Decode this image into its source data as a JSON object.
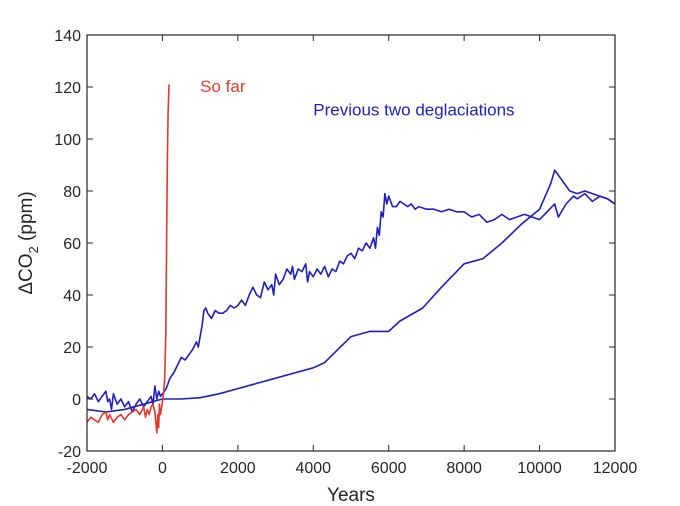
{
  "chart_data": {
    "type": "line",
    "xlabel": "Years",
    "ylabel_main": "ΔCO",
    "ylabel_sub": "2",
    "ylabel_unit": " (ppm)",
    "xlim": [
      -2000,
      12000
    ],
    "ylim": [
      -20,
      140
    ],
    "xticks": [
      -2000,
      0,
      2000,
      4000,
      6000,
      8000,
      10000,
      12000
    ],
    "yticks": [
      -20,
      0,
      20,
      40,
      60,
      80,
      100,
      120,
      140
    ],
    "xtick_labels": [
      "-2000",
      "0",
      "2000",
      "4000",
      "6000",
      "8000",
      "10000",
      "12000"
    ],
    "ytick_labels": [
      "-20",
      "0",
      "20",
      "40",
      "60",
      "80",
      "100",
      "120",
      "140"
    ],
    "grid": false,
    "colors": {
      "so_far": "#e03a2c",
      "previous": "#1f1fbf",
      "axis": "#262626"
    },
    "annotations": [
      {
        "text": "So far",
        "color": "#e03a2c",
        "x": 1000,
        "y": 118
      },
      {
        "text": "Previous two deglaciations",
        "color": "#1f1fbf",
        "x": 4000,
        "y": 109
      }
    ],
    "series": [
      {
        "key": "so_far",
        "color": "#e03a2c",
        "points": [
          [
            -2000,
            -9
          ],
          [
            -1900,
            -7
          ],
          [
            -1800,
            -8
          ],
          [
            -1700,
            -9
          ],
          [
            -1600,
            -6
          ],
          [
            -1500,
            -5
          ],
          [
            -1450,
            -8
          ],
          [
            -1400,
            -6
          ],
          [
            -1300,
            -9
          ],
          [
            -1200,
            -7
          ],
          [
            -1100,
            -6
          ],
          [
            -1000,
            -8
          ],
          [
            -900,
            -6
          ],
          [
            -800,
            -5
          ],
          [
            -700,
            -4
          ],
          [
            -600,
            -6
          ],
          [
            -500,
            -3
          ],
          [
            -450,
            -7
          ],
          [
            -400,
            -4
          ],
          [
            -350,
            -6
          ],
          [
            -300,
            -3
          ],
          [
            -250,
            -2
          ],
          [
            -200,
            -5
          ],
          [
            -150,
            -13
          ],
          [
            -120,
            -6
          ],
          [
            -100,
            -11
          ],
          [
            -80,
            -2
          ],
          [
            -50,
            -6
          ],
          [
            -20,
            -3
          ],
          [
            0,
            -1
          ],
          [
            30,
            2
          ],
          [
            60,
            8
          ],
          [
            90,
            25
          ],
          [
            110,
            60
          ],
          [
            130,
            90
          ],
          [
            150,
            110
          ],
          [
            175,
            121
          ]
        ]
      },
      {
        "key": "previous_a",
        "color": "#1f1fbf",
        "points": [
          [
            -2000,
            1
          ],
          [
            -1900,
            0
          ],
          [
            -1800,
            2
          ],
          [
            -1700,
            -1
          ],
          [
            -1600,
            1
          ],
          [
            -1500,
            3
          ],
          [
            -1450,
            -1
          ],
          [
            -1400,
            0
          ],
          [
            -1350,
            -4
          ],
          [
            -1300,
            2
          ],
          [
            -1200,
            -2
          ],
          [
            -1100,
            0
          ],
          [
            -1000,
            -3
          ],
          [
            -900,
            -1
          ],
          [
            -800,
            -5
          ],
          [
            -700,
            -2
          ],
          [
            -600,
            0
          ],
          [
            -500,
            -3
          ],
          [
            -400,
            -1
          ],
          [
            -300,
            1
          ],
          [
            -250,
            -2
          ],
          [
            -200,
            5
          ],
          [
            -150,
            0
          ],
          [
            -100,
            3
          ],
          [
            -50,
            1
          ],
          [
            0,
            2
          ],
          [
            100,
            4
          ],
          [
            200,
            8
          ],
          [
            300,
            10
          ],
          [
            400,
            13
          ],
          [
            500,
            16
          ],
          [
            600,
            15
          ],
          [
            700,
            17
          ],
          [
            800,
            19
          ],
          [
            900,
            22
          ],
          [
            950,
            20
          ],
          [
            1000,
            24
          ],
          [
            1050,
            28
          ],
          [
            1100,
            34
          ],
          [
            1150,
            35
          ],
          [
            1200,
            33
          ],
          [
            1300,
            31
          ],
          [
            1400,
            34
          ],
          [
            1500,
            33
          ],
          [
            1600,
            33
          ],
          [
            1700,
            34
          ],
          [
            1800,
            36
          ],
          [
            1900,
            35
          ],
          [
            2000,
            36
          ],
          [
            2100,
            38
          ],
          [
            2200,
            36
          ],
          [
            2300,
            40
          ],
          [
            2400,
            43
          ],
          [
            2500,
            40
          ],
          [
            2600,
            39
          ],
          [
            2700,
            45
          ],
          [
            2800,
            42
          ],
          [
            2900,
            44
          ],
          [
            2950,
            40
          ],
          [
            3000,
            48
          ],
          [
            3100,
            44
          ],
          [
            3200,
            46
          ],
          [
            3300,
            50
          ],
          [
            3400,
            48
          ],
          [
            3450,
            51
          ],
          [
            3500,
            46
          ],
          [
            3600,
            50
          ],
          [
            3700,
            49
          ],
          [
            3800,
            52
          ],
          [
            3850,
            45
          ],
          [
            3900,
            49
          ],
          [
            4000,
            47
          ],
          [
            4100,
            50
          ],
          [
            4200,
            48
          ],
          [
            4300,
            51
          ],
          [
            4400,
            47
          ],
          [
            4500,
            50
          ],
          [
            4600,
            49
          ],
          [
            4700,
            53
          ],
          [
            4800,
            52
          ],
          [
            4900,
            55
          ],
          [
            5000,
            56
          ],
          [
            5100,
            54
          ],
          [
            5200,
            58
          ],
          [
            5300,
            57
          ],
          [
            5400,
            60
          ],
          [
            5500,
            58
          ],
          [
            5600,
            62
          ],
          [
            5650,
            58
          ],
          [
            5700,
            66
          ],
          [
            5750,
            63
          ],
          [
            5800,
            72
          ],
          [
            5850,
            70
          ],
          [
            5900,
            79
          ],
          [
            5950,
            75
          ],
          [
            6000,
            78
          ],
          [
            6100,
            74
          ],
          [
            6200,
            74
          ],
          [
            6300,
            76
          ],
          [
            6400,
            75
          ],
          [
            6500,
            74
          ],
          [
            6600,
            75
          ],
          [
            6700,
            73
          ],
          [
            6800,
            74
          ],
          [
            7000,
            73
          ],
          [
            7200,
            73
          ],
          [
            7400,
            72
          ],
          [
            7600,
            73
          ],
          [
            7800,
            72
          ],
          [
            8000,
            72
          ],
          [
            8200,
            70
          ],
          [
            8400,
            71
          ],
          [
            8600,
            68
          ],
          [
            8800,
            69
          ],
          [
            9000,
            71
          ],
          [
            9200,
            69
          ],
          [
            9400,
            70
          ],
          [
            9600,
            71
          ],
          [
            9800,
            70
          ],
          [
            10000,
            69
          ],
          [
            10200,
            72
          ],
          [
            10400,
            75
          ],
          [
            10500,
            70
          ],
          [
            10700,
            75
          ],
          [
            10900,
            78
          ],
          [
            11000,
            77
          ],
          [
            11200,
            79
          ],
          [
            11400,
            76
          ],
          [
            11600,
            78
          ],
          [
            11800,
            77
          ],
          [
            12000,
            75
          ]
        ]
      },
      {
        "key": "previous_b",
        "color": "#1f1fbf",
        "points": [
          [
            -2000,
            -4
          ],
          [
            -1500,
            -5
          ],
          [
            -1000,
            -4
          ],
          [
            -500,
            -2
          ],
          [
            0,
            0
          ],
          [
            500,
            0
          ],
          [
            1000,
            0.5
          ],
          [
            1500,
            2
          ],
          [
            2000,
            4
          ],
          [
            2500,
            6
          ],
          [
            3000,
            8
          ],
          [
            3500,
            10
          ],
          [
            4000,
            12
          ],
          [
            4300,
            14
          ],
          [
            5000,
            24
          ],
          [
            5500,
            26
          ],
          [
            6000,
            26
          ],
          [
            6300,
            30
          ],
          [
            6900,
            35
          ],
          [
            7400,
            43
          ],
          [
            8000,
            52
          ],
          [
            8500,
            54
          ],
          [
            9000,
            60
          ],
          [
            9500,
            67
          ],
          [
            10000,
            73
          ],
          [
            10300,
            83
          ],
          [
            10400,
            88
          ],
          [
            10800,
            80
          ],
          [
            11000,
            79
          ],
          [
            11200,
            80
          ],
          [
            11400,
            79
          ],
          [
            11600,
            78
          ],
          [
            11800,
            77
          ],
          [
            12000,
            75
          ]
        ]
      }
    ]
  }
}
